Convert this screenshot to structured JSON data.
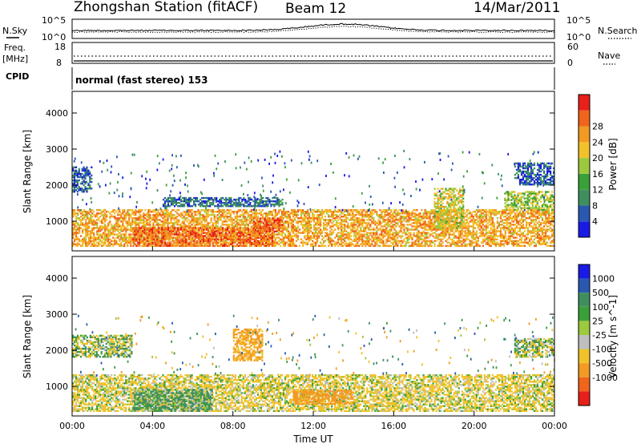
{
  "header": {
    "station": "Zhongshan Station (fitACF)",
    "beam": "Beam 12",
    "date": "14/Mar/2011"
  },
  "meta_panels": {
    "nsky_label": "N.Sky",
    "nsearch_label": "N.Search",
    "left_top_tick": "10^5",
    "left_bottom_tick": "10^0",
    "right_top_tick": "10^5",
    "right_bottom_tick": "10^0",
    "freq_label": "Freq.",
    "freq_unit": "[MHz]",
    "freq_top": "18",
    "freq_bottom": "8",
    "nave_label": "Nave",
    "nave_top": "60",
    "nave_bottom": "0",
    "cpid_label": "CPID",
    "cpid_text": "normal (fast stereo) 153"
  },
  "colors": {
    "power": [
      "#1a1ae6",
      "#2a58b0",
      "#3f8f5e",
      "#3aa03a",
      "#9cc93d",
      "#f2c22a",
      "#f29a22",
      "#f0641c",
      "#e8201a"
    ],
    "velocity": [
      "#1a1ae6",
      "#2a58b0",
      "#3f8f5e",
      "#3aa03a",
      "#9cc93d",
      "#bfbfbf",
      "#f2c22a",
      "#f29a22",
      "#f0641c",
      "#e8201a"
    ]
  },
  "chart_data": [
    {
      "type": "heatmap",
      "name": "power",
      "ylabel": "Slant Range [km]",
      "xlabel": "",
      "xlim": [
        "00:00",
        "24:00"
      ],
      "ylim": [
        180,
        4600
      ],
      "yticks": [
        "1000",
        "2000",
        "3000",
        "4000"
      ],
      "colorbar_label": "Power [dB]",
      "colorbar_ticks": [
        "4",
        "8",
        "12",
        "16",
        "20",
        "24",
        "28"
      ],
      "colorbar_range": [
        0,
        32
      ],
      "echo_regions": [
        {
          "t0": 0.0,
          "t1": 24.0,
          "r0": 300,
          "r1": 1300,
          "level": 22
        },
        {
          "t0": 3.0,
          "t1": 10.0,
          "r0": 300,
          "r1": 800,
          "level": 26
        },
        {
          "t0": 9.0,
          "t1": 10.5,
          "r0": 700,
          "r1": 1100,
          "level": 27
        },
        {
          "t0": 0.0,
          "t1": 1.0,
          "r0": 1800,
          "r1": 2500,
          "level": 6
        },
        {
          "t0": 4.5,
          "t1": 10.5,
          "r0": 1400,
          "r1": 1650,
          "level": 7
        },
        {
          "t0": 18.0,
          "t1": 19.5,
          "r0": 800,
          "r1": 1900,
          "level": 18
        },
        {
          "t0": 21.5,
          "t1": 24.0,
          "r0": 1300,
          "r1": 1800,
          "level": 16
        },
        {
          "t0": 22.0,
          "t1": 24.0,
          "r0": 2000,
          "r1": 2600,
          "level": 6
        }
      ]
    },
    {
      "type": "heatmap",
      "name": "velocity",
      "ylabel": "Slant Range [km]",
      "xlabel": "Time UT",
      "xlim": [
        "00:00",
        "24:00"
      ],
      "ylim": [
        180,
        4600
      ],
      "yticks": [
        "1000",
        "2000",
        "3000",
        "4000"
      ],
      "xticks": [
        "00:00",
        "04:00",
        "08:00",
        "12:00",
        "16:00",
        "20:00",
        "00:00"
      ],
      "colorbar_label": "Velocity [m s^-1]",
      "colorbar_ticks": [
        "1000",
        "500",
        "100",
        "25",
        "-25",
        "-100",
        "-500",
        "-1000"
      ],
      "echo_regions": [
        {
          "t0": 0.0,
          "t1": 24.0,
          "r0": 300,
          "r1": 1300,
          "level": -150
        },
        {
          "t0": 0.0,
          "t1": 3.0,
          "r0": 1800,
          "r1": 2400,
          "level": 0
        },
        {
          "t0": 8.0,
          "t1": 9.5,
          "r0": 1700,
          "r1": 2600,
          "level": -600
        },
        {
          "t0": 11.0,
          "t1": 14.0,
          "r0": 500,
          "r1": 900,
          "level": -700
        },
        {
          "t0": 22.0,
          "t1": 24.0,
          "r0": 1800,
          "r1": 2300,
          "level": 0
        },
        {
          "t0": 3.0,
          "t1": 7.0,
          "r0": 300,
          "r1": 900,
          "level": 150
        }
      ]
    }
  ]
}
